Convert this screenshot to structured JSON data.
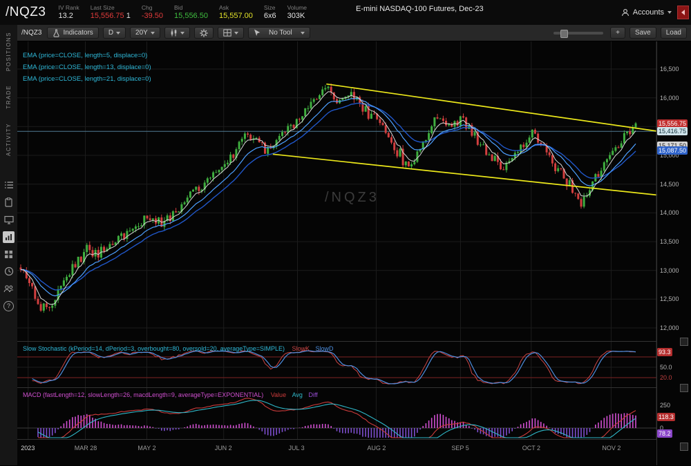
{
  "header": {
    "symbol": "/NQZ3",
    "iv_rank_label": "IV Rank",
    "iv_rank": "13.2",
    "last_label": "Last Size",
    "last": "15,556.75",
    "last_qty": "1",
    "chg_label": "Chg",
    "chg": "-39.50",
    "bid_label": "Bid",
    "bid": "15,556.50",
    "ask_label": "Ask",
    "ask": "15,557.00",
    "size_label": "Size",
    "size": "6x6",
    "volume_label": "Volume",
    "volume": "303K",
    "instrument": "E-mini NASDAQ-100 Futures, Dec-23",
    "accounts": "Accounts"
  },
  "sidebar": {
    "tabs": [
      "POSITIONS",
      "TRADE",
      "ACTIVITY"
    ],
    "help_glyph": "?"
  },
  "toolbar": {
    "symbol": "/NQZ3",
    "indicators": "Indicators",
    "timeframe": "D",
    "range": "20Y",
    "tool": "No Tool",
    "zoom_in": "+",
    "save": "Save",
    "load": "Load"
  },
  "studies": {
    "ema": [
      "EMA (price=CLOSE, length=5, displace=0)",
      "EMA (price=CLOSE, length=13, displace=0)",
      "EMA (price=CLOSE, length=21, displace=0)"
    ],
    "stoch_label": "Slow Stochastic (kPeriod=14, dPeriod=3, overbought=80, oversold=20, averageType=SIMPLE)",
    "stoch_k": "SlowK",
    "stoch_d": "SlowD",
    "macd_label": "MACD (fastLength=12, slowLength=26, macdLength=9, averageType=EXPONENTIAL)",
    "macd_value": "Value",
    "macd_avg": "Avg",
    "macd_diff": "Diff"
  },
  "price_axis": {
    "ticks": [
      16500,
      16000,
      15500,
      15000,
      14500,
      14000,
      13500,
      13000,
      12500,
      12000
    ],
    "bubbles": [
      {
        "text": "15,556.75",
        "value": 15556.75,
        "bg": "#c22f2f",
        "fg": "#ffffff"
      },
      {
        "text": "15,416.75",
        "value": 15416.75,
        "bg": "#cfe3ea",
        "fg": "#10303a"
      },
      {
        "text": "15,171.50",
        "value": 15171.5,
        "bg": "#d6d6d6",
        "fg": "#222222"
      },
      {
        "text": "15,087.50",
        "value": 15087.5,
        "bg": "#2f63c9",
        "fg": "#ffffff"
      }
    ]
  },
  "stoch_axis": {
    "mid": "50.0",
    "oversold": "20.0",
    "bubble": {
      "text": "93.3",
      "v": 93.3,
      "bg": "#b52e2e",
      "fg": "#ffffff"
    }
  },
  "macd_axis": {
    "ticks": [
      "250",
      "0"
    ],
    "bubbles": [
      {
        "text": "118.3",
        "v": 118.3,
        "bg": "#b52e2e",
        "fg": "#ffffff"
      },
      {
        "text": "78.2",
        "bg": "#8a46c9",
        "fg": "#ffffff"
      }
    ]
  },
  "time_axis": {
    "labels": [
      {
        "text": "2023",
        "t": 0.012,
        "major": true
      },
      {
        "text": "MAR 28",
        "t": 0.105
      },
      {
        "text": "MAY 2",
        "t": 0.205
      },
      {
        "text": "JUN 2",
        "t": 0.33
      },
      {
        "text": "JUL 3",
        "t": 0.45
      },
      {
        "text": "AUG 2",
        "t": 0.578
      },
      {
        "text": "SEP 5",
        "t": 0.715
      },
      {
        "text": "OCT 2",
        "t": 0.83
      },
      {
        "text": "NOV 2",
        "t": 0.96
      }
    ]
  },
  "chart_data": {
    "type": "candlestick",
    "symbol": "/NQZ3",
    "timeframe": "1 day",
    "seed": 9,
    "num_candles": 215,
    "last_price": 15556.75,
    "ref_line": 15416.75,
    "y_ticks": [
      16500,
      16000,
      15500,
      15000,
      14500,
      14000,
      13500,
      13000,
      12500,
      12000
    ],
    "price_anchors": [
      [
        0.0,
        13050
      ],
      [
        0.012,
        12800
      ],
      [
        0.03,
        12380
      ],
      [
        0.05,
        12320
      ],
      [
        0.068,
        12750
      ],
      [
        0.09,
        13150
      ],
      [
        0.105,
        13380
      ],
      [
        0.128,
        13270
      ],
      [
        0.155,
        13520
      ],
      [
        0.18,
        13720
      ],
      [
        0.205,
        13870
      ],
      [
        0.23,
        13810
      ],
      [
        0.258,
        14080
      ],
      [
        0.285,
        14380
      ],
      [
        0.31,
        14650
      ],
      [
        0.33,
        14820
      ],
      [
        0.355,
        15180
      ],
      [
        0.378,
        15380
      ],
      [
        0.398,
        15070
      ],
      [
        0.42,
        15300
      ],
      [
        0.45,
        15600
      ],
      [
        0.478,
        15950
      ],
      [
        0.497,
        16240
      ],
      [
        0.514,
        15880
      ],
      [
        0.532,
        16060
      ],
      [
        0.55,
        15930
      ],
      [
        0.578,
        15640
      ],
      [
        0.598,
        15350
      ],
      [
        0.618,
        14930
      ],
      [
        0.632,
        14780
      ],
      [
        0.655,
        15280
      ],
      [
        0.675,
        15660
      ],
      [
        0.7,
        15500
      ],
      [
        0.718,
        15680
      ],
      [
        0.738,
        15320
      ],
      [
        0.762,
        14960
      ],
      [
        0.785,
        14820
      ],
      [
        0.815,
        15130
      ],
      [
        0.832,
        15360
      ],
      [
        0.85,
        15130
      ],
      [
        0.872,
        14760
      ],
      [
        0.895,
        14380
      ],
      [
        0.912,
        14170
      ],
      [
        0.932,
        14560
      ],
      [
        0.95,
        14920
      ],
      [
        0.968,
        15160
      ],
      [
        0.984,
        15340
      ],
      [
        1.0,
        15556.75
      ]
    ],
    "trendlines": [
      {
        "from": [
          0.497,
          16240
        ],
        "to": [
          1.035,
          15420
        ]
      },
      {
        "from": [
          0.41,
          15020
        ],
        "to": [
          1.035,
          14310
        ]
      }
    ],
    "indicators": {
      "ema_lengths": [
        5,
        13,
        21
      ],
      "slow_stochastic": {
        "kPeriod": 14,
        "dPeriod": 3,
        "overbought": 80,
        "oversold": 20,
        "slowk_last": 93.3
      },
      "macd": {
        "fast": 12,
        "slow": 26,
        "signal": 9,
        "value_last": 118.3,
        "diff_last": 78.2
      }
    },
    "colors": {
      "up": "#3fae3f",
      "down": "#d23f3f",
      "trendline": "#ece81a",
      "ema5": "#d9d9d9",
      "ema13": "#4da0ff",
      "ema21": "#2057c9",
      "slowk": "#cc4545",
      "slowd": "#4d8fe0",
      "macd_value": "#cc3b3b",
      "macd_avg": "#2fb8c9",
      "macd_diff_pos": "#d24fd2",
      "macd_diff_neg": "#7e4fd0",
      "ref_line": "#517d93",
      "stoch_band": "#7e2222"
    }
  }
}
